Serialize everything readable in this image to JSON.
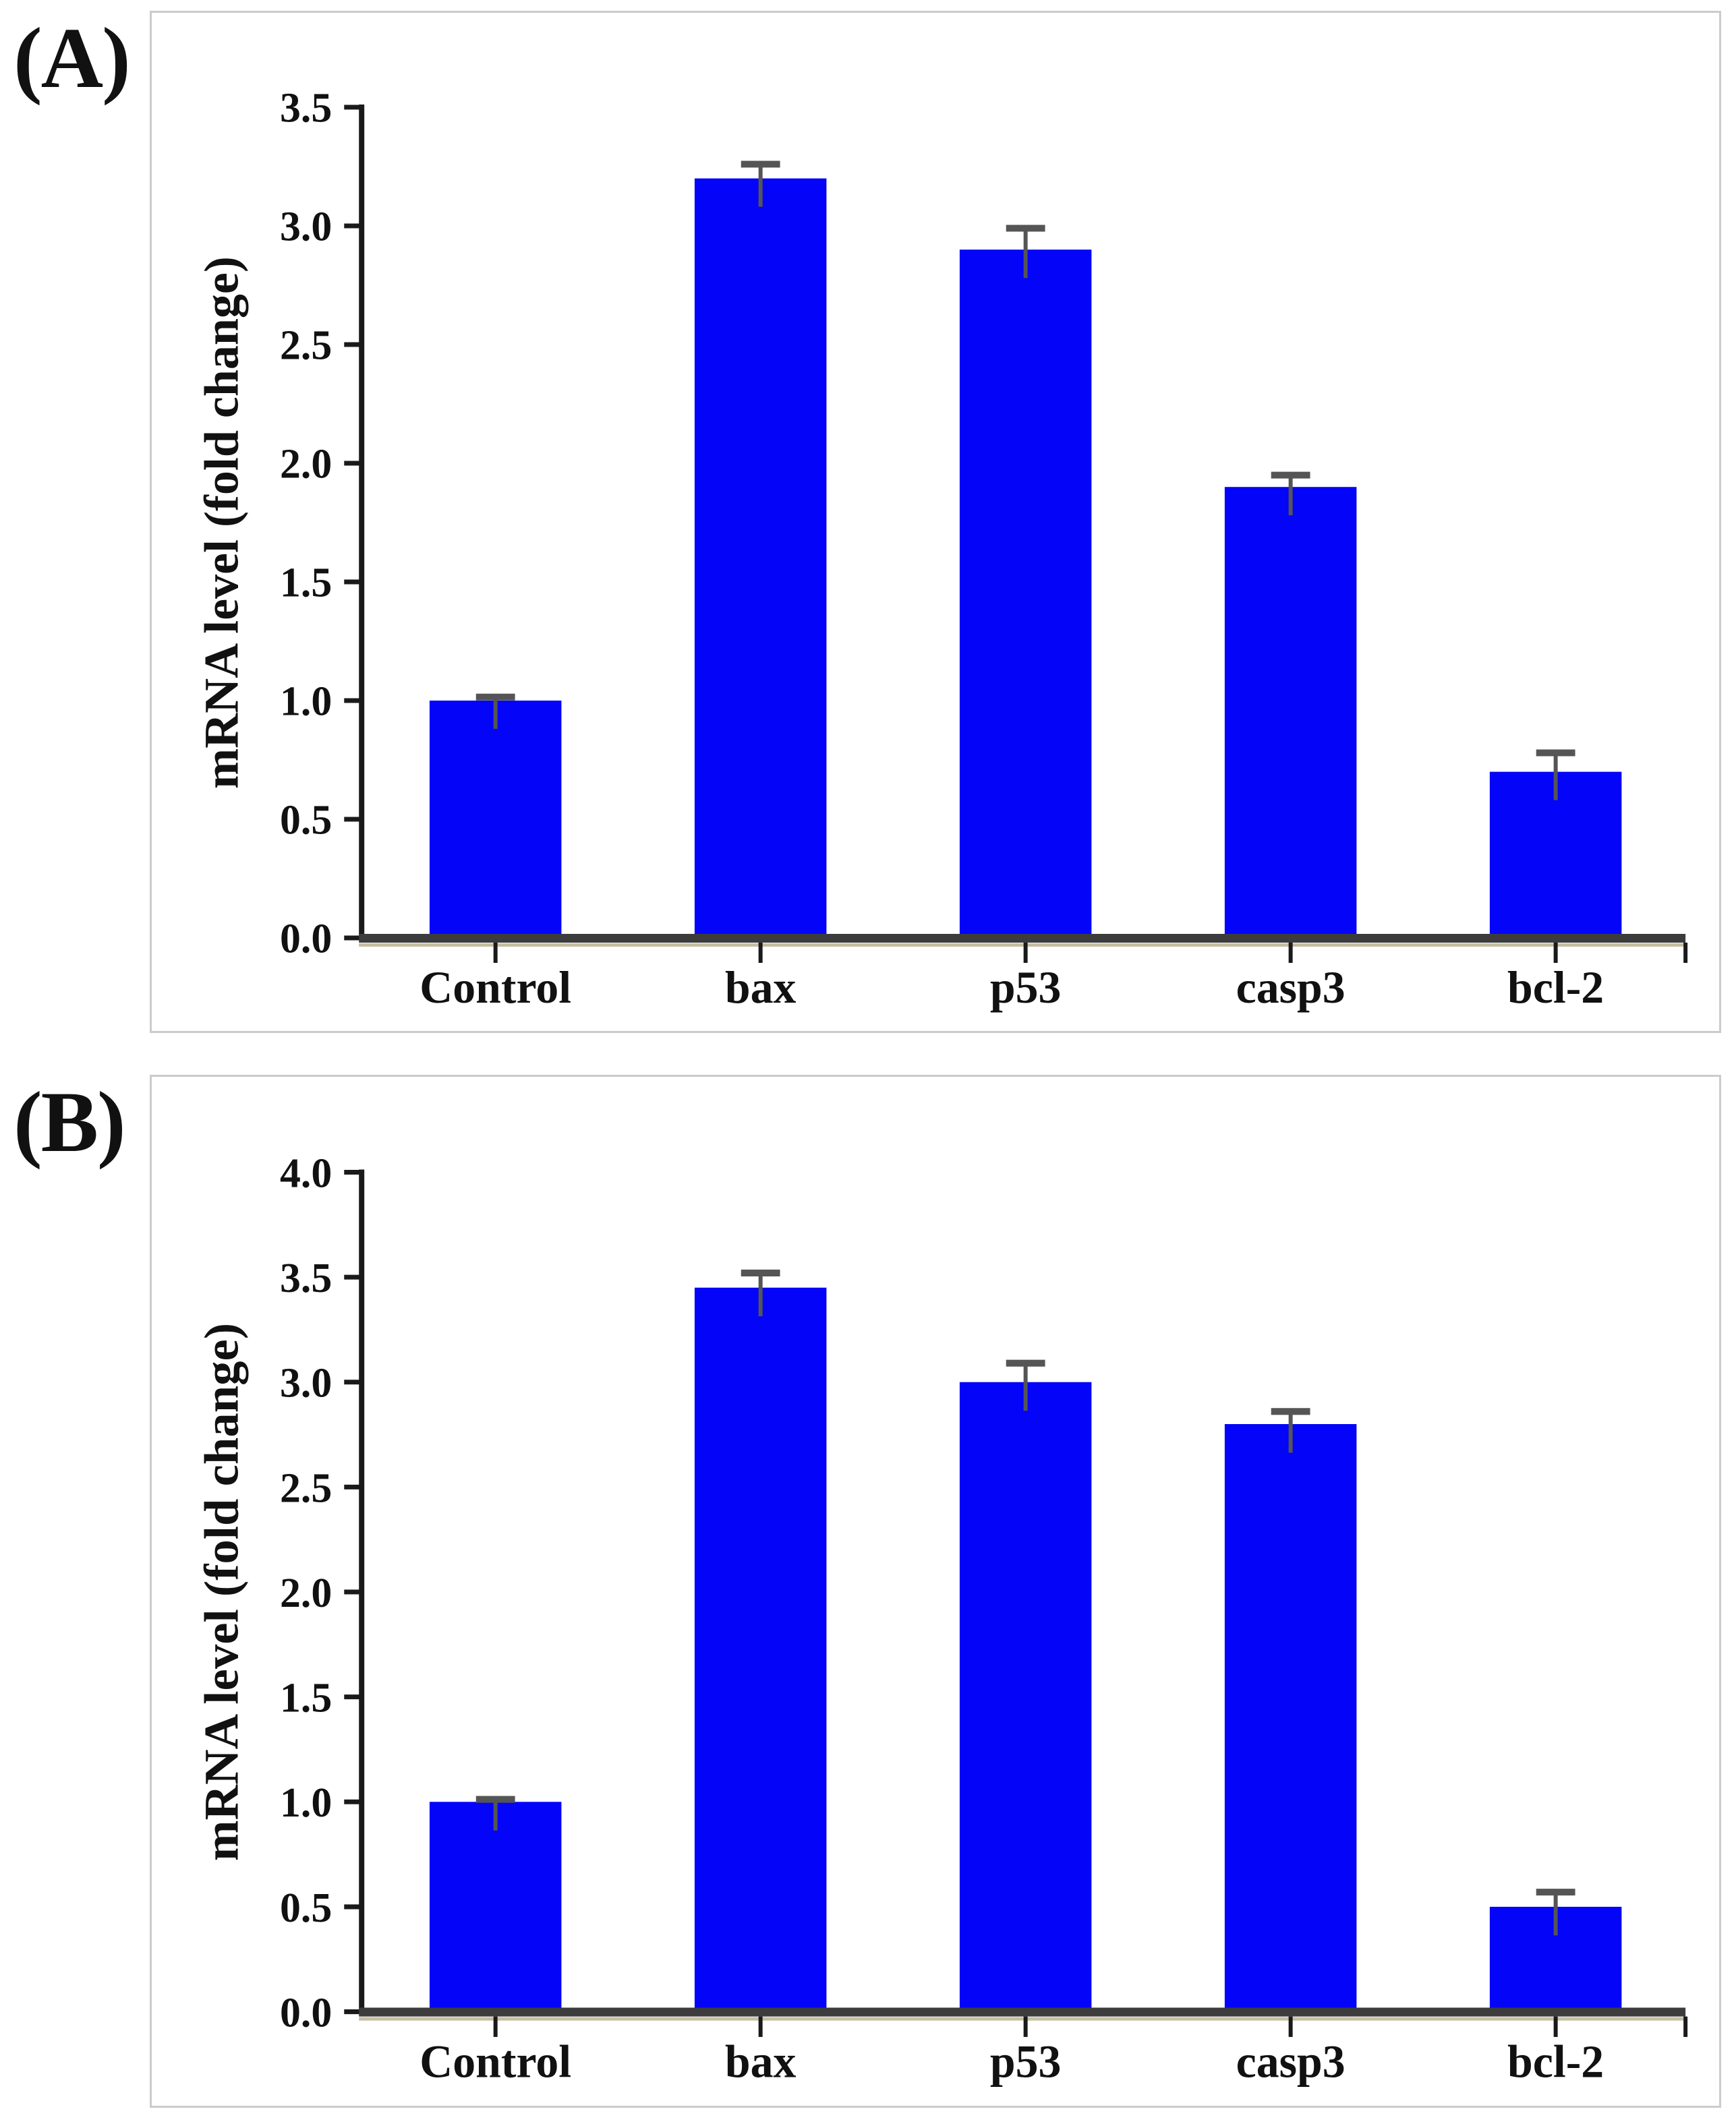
{
  "figure": {
    "background": "#ffffff",
    "panel_border_color": "#cbcbcb"
  },
  "chart_data": [
    {
      "type": "bar",
      "panel_label": "(A)",
      "title": "",
      "xlabel": "",
      "ylabel": "mRNA level (fold change)",
      "ylim": [
        0.0,
        3.5
      ],
      "ytick_step": 0.5,
      "ytick_labels": [
        "0.0",
        "0.5",
        "1.0",
        "1.5",
        "2.0",
        "2.5",
        "3.0",
        "3.5"
      ],
      "categories": [
        "Control",
        "bax",
        "p53",
        "casp3",
        "bcl-2"
      ],
      "values": [
        1.0,
        3.2,
        2.9,
        1.9,
        0.7
      ],
      "errors": [
        0.015,
        0.06,
        0.09,
        0.05,
        0.08
      ],
      "bar_color": "#0404f8",
      "error_color": "#555555",
      "axis_color": "#1a1a1a",
      "baseline_color": "#3c3c3c",
      "baseline_shadow_color": "#b6ae8a",
      "grid": false,
      "legend": null
    },
    {
      "type": "bar",
      "panel_label": "(B)",
      "title": "",
      "xlabel": "",
      "ylabel": "mRNA level (fold change)",
      "ylim": [
        0.0,
        4.0
      ],
      "ytick_step": 0.5,
      "ytick_labels": [
        "0.0",
        "0.5",
        "1.0",
        "1.5",
        "2.0",
        "2.5",
        "3.0",
        "3.5",
        "4.0"
      ],
      "categories": [
        "Control",
        "bax",
        "p53",
        "casp3",
        "bcl-2"
      ],
      "values": [
        1.0,
        3.45,
        3.0,
        2.8,
        0.5
      ],
      "errors": [
        0.012,
        0.07,
        0.09,
        0.06,
        0.07
      ],
      "bar_color": "#0404f8",
      "error_color": "#555555",
      "axis_color": "#1a1a1a",
      "baseline_color": "#3c3c3c",
      "baseline_shadow_color": "#b6ae8a",
      "grid": false,
      "legend": null
    }
  ]
}
